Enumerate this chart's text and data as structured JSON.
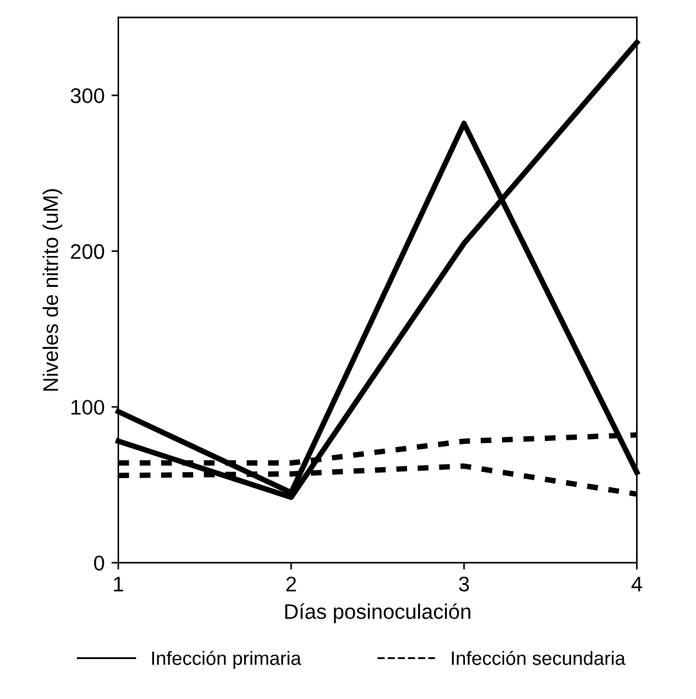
{
  "chart_data": {
    "type": "line",
    "xlabel": "Días posinoculación",
    "ylabel": "Niveles de nitrito (uM)",
    "x": [
      1,
      2,
      3,
      4
    ],
    "series": [
      {
        "name": "Infección primaria",
        "color": "#000000",
        "line_style": "solid",
        "values": [
          97,
          45,
          282,
          58
        ]
      },
      {
        "color": "#000000",
        "line_style": "solid",
        "values": [
          78,
          42,
          205,
          334
        ]
      },
      {
        "name": "Infección secundaria",
        "color": "#000000",
        "line_style": "dotted",
        "values": [
          64,
          64,
          78,
          82
        ]
      },
      {
        "color": "#000000",
        "line_style": "dotted",
        "values": [
          56,
          57,
          62,
          44
        ]
      }
    ],
    "xlim": [
      1,
      4
    ],
    "xticks": [
      1,
      2,
      3,
      4
    ],
    "ylim": [
      0,
      350
    ],
    "yticks": [
      0,
      100,
      200,
      300
    ],
    "grid": false,
    "legend": "bottom",
    "marker": "none"
  }
}
